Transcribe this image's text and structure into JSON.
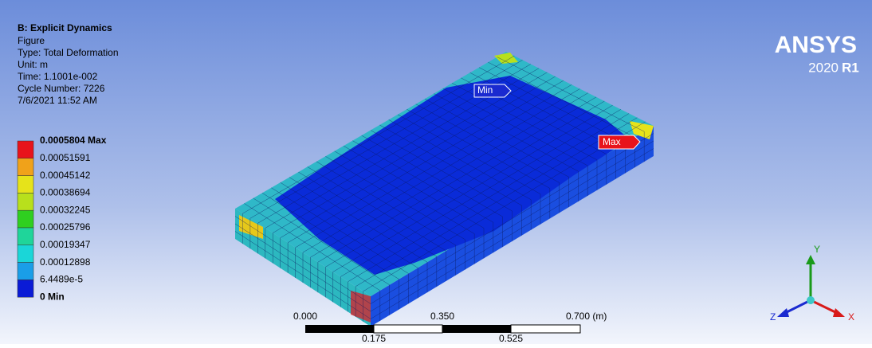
{
  "header": {
    "title": "B: Explicit Dynamics",
    "lines": [
      "Figure",
      "Type: Total Deformation",
      "Unit: m",
      "Time: 1.1001e-002",
      "Cycle Number: 7226",
      "7/6/2021 11:52 AM"
    ]
  },
  "legend": {
    "labels": [
      "0.0005804 Max",
      "0.00051591",
      "0.00045142",
      "0.00038694",
      "0.00032245",
      "0.00025796",
      "0.00019347",
      "0.00012898",
      "6.4489e-5",
      "0 Min"
    ],
    "colors": [
      "#e8131b",
      "#f0a21a",
      "#e6e31a",
      "#b8e01c",
      "#2fcf20",
      "#1fd59a",
      "#1ad6d8",
      "#1a9ee8",
      "#0a1bd6"
    ]
  },
  "probes": {
    "min": "Min",
    "max": "Max"
  },
  "logo": {
    "name": "ANSYS",
    "year": "2020",
    "release": "R1"
  },
  "scale_bar": {
    "top_labels": [
      "0.000",
      "0.350",
      "0.700 (m)"
    ],
    "bottom_labels": [
      "0.175",
      "0.525"
    ]
  },
  "triad": {
    "x": "X",
    "y": "Y",
    "z": "Z"
  }
}
